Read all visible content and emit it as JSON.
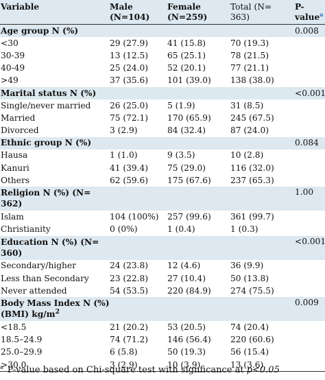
{
  "header": {
    "variable": "Variable",
    "male_line1": "Male",
    "male_line2": "(N=104)",
    "female_line1": "Female",
    "female_line2": "(N=259)",
    "total_line1": "Total (N=",
    "total_line2": "363)",
    "p_line1": "P-",
    "p_line2": "value",
    "p_note_mark": "a"
  },
  "groups": [
    {
      "title": "Age group N (%)",
      "p": "0.008",
      "rows": [
        {
          "label": "<30",
          "male": "29 (27.9)",
          "female": "41 (15.8)",
          "total": "70 (19.3)"
        },
        {
          "label": "30-39",
          "male": "13 (12.5)",
          "female": "65 (25.1)",
          "total": "78 (21.5)"
        },
        {
          "label": "40-49",
          "male": "25 (24.0)",
          "female": "52 (20.1)",
          "total": "77 (21.1)"
        },
        {
          "label": ">49",
          "male": "37 (35.6)",
          "female": "101 (39.0)",
          "total": "138 (38.0)"
        }
      ]
    },
    {
      "title": "Marital status N (%)",
      "p": "<0.001",
      "rows": [
        {
          "label": "Single/never married",
          "male": "26 (25.0)",
          "female": "5 (1.9)",
          "total": "31 (8.5)"
        },
        {
          "label": "Married",
          "male": "75 (72.1)",
          "female": "170 (65.9)",
          "total": "245 (67.5)"
        },
        {
          "label": "Divorced",
          "male": "3 (2.9)",
          "female": "84 (32.4)",
          "total": "87 (24.0)"
        }
      ]
    },
    {
      "title": "Ethnic group N (%)",
      "p": "0.084",
      "rows": [
        {
          "label": "Hausa",
          "male": "1 (1.0)",
          "female": "9 (3.5)",
          "total": "10 (2.8)"
        },
        {
          "label": "Kanuri",
          "male": "41 (39.4)",
          "female": "75 (29.0)",
          "total": "116 (32.0)"
        },
        {
          "label": "Others",
          "male": "62 (59.6)",
          "female": "175 (67.6)",
          "total": "237 (65.3)"
        }
      ]
    },
    {
      "title": "Religion N (%) (N= 362)",
      "p": "1.00",
      "rows": [
        {
          "label": "Islam",
          "male": "104 (100%)",
          "female": "257 (99.6)",
          "total": "361 (99.7)"
        },
        {
          "label": "Christianity",
          "male": "0 (0%)",
          "female": "1 (0.4)",
          "total": "1 (0.3)"
        }
      ]
    },
    {
      "title": "Education N (%) (N= 360)",
      "p": "<0.001",
      "rows": [
        {
          "label": "Secondary/higher",
          "male": "24 (23.8)",
          "female": "12 (4.6)",
          "total": "36 (9.9)"
        },
        {
          "label": "Less than Secondary",
          "male": "23 (22.8)",
          "female": "27 (10.4)",
          "total": "50 (13.8)"
        },
        {
          "label": "Never attended",
          "male": "54 (53.5)",
          "female": "220 (84.9)",
          "total": "274 (75.5)"
        }
      ]
    },
    {
      "title": "Body Mass Index N (%) (BMI) kg/m",
      "title_sup": "2",
      "p": "0.009",
      "rows": [
        {
          "label": "<18.5",
          "male": "21 (20.2)",
          "female": "53 (20.5)",
          "total": "74 (20.4)"
        },
        {
          "label": "18.5–24.9",
          "male": "74 (71.2)",
          "female": "146 (56.4)",
          "total": "220 (60.6)"
        },
        {
          "label": "25.0–29.9",
          "male": "6 (5.8)",
          "female": "50 (19.3)",
          "total": "56 (15.4)"
        },
        {
          "label": ">30.0",
          "male": "3 (2.9)",
          "female": "10 (3.9)",
          "total": "13 (3.6)"
        }
      ]
    }
  ],
  "footnote": {
    "mark": "a",
    "text": "P-value based on Chi-square test with signficance at ",
    "threshold": "p<0.05"
  }
}
